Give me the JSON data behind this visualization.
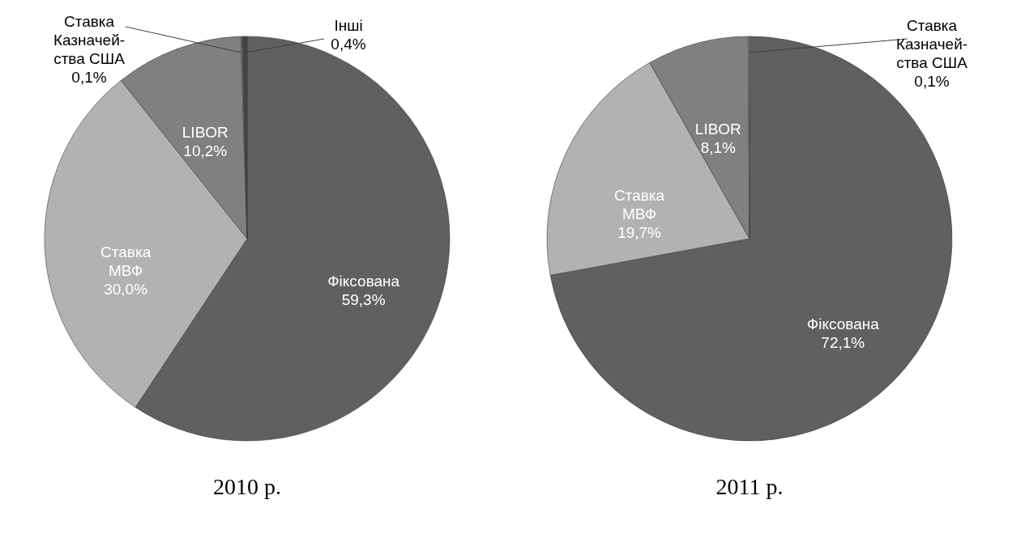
{
  "chart_data": [
    {
      "type": "pie",
      "title": "2010 р.",
      "categories": [
        "Фіксована",
        "Ставка\nМВФ",
        "LIBOR",
        "Ставка\nКазначей-\nства США",
        "Інші"
      ],
      "values": [
        59.3,
        30.0,
        10.2,
        0.1,
        0.4
      ],
      "colors": [
        "#606060",
        "#b2b2b2",
        "#808080",
        "#9a9a9a",
        "#444444"
      ],
      "value_labels": [
        "59,3%",
        "30,0%",
        "10,2%",
        "0,1%",
        "0,4%"
      ]
    },
    {
      "type": "pie",
      "title": "2011 р.",
      "categories": [
        "Фіксована",
        "Ставка\nМВФ",
        "LIBOR",
        "Ставка\nКазначей-\nства США"
      ],
      "values": [
        72.1,
        19.7,
        8.1,
        0.1
      ],
      "colors": [
        "#606060",
        "#b2b2b2",
        "#808080",
        "#9a9a9a"
      ],
      "value_labels": [
        "72,1%",
        "19,7%",
        "8,1%",
        "0,1%"
      ]
    }
  ]
}
